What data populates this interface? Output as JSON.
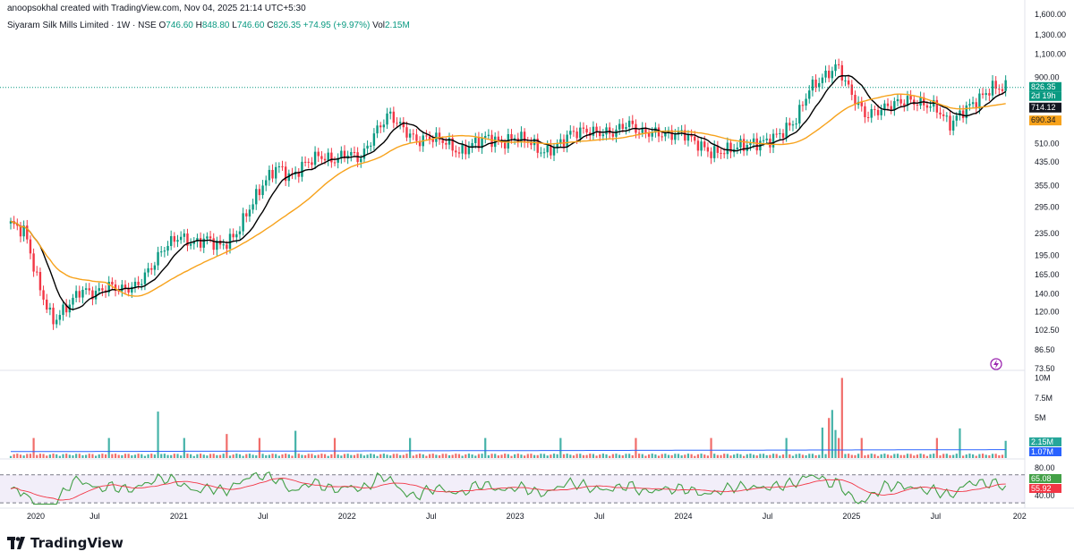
{
  "header": {
    "text": "anoopsokhal created with TradingView.com, Nov 04, 2025 21:14 UTC+5:30"
  },
  "legend": {
    "symbol": "Siyaram Silk Mills Limited · 1W · NSE",
    "o_label": "O",
    "o_value": "746.60",
    "h_label": "H",
    "h_value": "848.80",
    "l_label": "L",
    "l_value": "746.60",
    "c_label": "C",
    "c_value": "826.35",
    "change": "+74.95 (+9.97%)",
    "vol_label": "Vol",
    "vol_value": "2.15M"
  },
  "chart_data": {
    "type": "candlestick",
    "price_scale": "log",
    "price_axis_ticks": [
      "1,300.00",
      "1,100.00",
      "900.00",
      "510.00",
      "435.00",
      "355.00",
      "295.00",
      "235.00",
      "195.00",
      "165.00",
      "140.00",
      "120.00",
      "102.50",
      "86.50",
      "73.50"
    ],
    "price_axis_top_label": "1,600.00",
    "x_axis_labels": [
      "2020",
      "Jul",
      "2021",
      "Jul",
      "2022",
      "Jul",
      "2023",
      "Jul",
      "2024",
      "Jul",
      "2025",
      "Jul",
      "202"
    ],
    "volume_axis_ticks": [
      "10M",
      "7.5M",
      "5M"
    ],
    "rsi_axis_ticks": [
      "80.00",
      "40.00"
    ],
    "price_series": [
      {
        "date": "2020-01",
        "close": 255
      },
      {
        "date": "2020-02",
        "close": 240
      },
      {
        "date": "2020-03",
        "close": 150
      },
      {
        "date": "2020-04",
        "close": 110
      },
      {
        "date": "2020-05",
        "close": 125
      },
      {
        "date": "2020-06",
        "close": 145
      },
      {
        "date": "2020-07",
        "close": 140
      },
      {
        "date": "2020-08",
        "close": 150
      },
      {
        "date": "2020-09",
        "close": 145
      },
      {
        "date": "2020-10",
        "close": 150
      },
      {
        "date": "2020-11",
        "close": 175
      },
      {
        "date": "2020-12",
        "close": 210
      },
      {
        "date": "2021-01",
        "close": 230
      },
      {
        "date": "2021-02",
        "close": 215
      },
      {
        "date": "2021-03",
        "close": 225
      },
      {
        "date": "2021-04",
        "close": 210
      },
      {
        "date": "2021-05",
        "close": 230
      },
      {
        "date": "2021-06",
        "close": 290
      },
      {
        "date": "2021-07",
        "close": 360
      },
      {
        "date": "2021-08",
        "close": 420
      },
      {
        "date": "2021-09",
        "close": 380
      },
      {
        "date": "2021-10",
        "close": 430
      },
      {
        "date": "2021-11",
        "close": 460
      },
      {
        "date": "2021-12",
        "close": 440
      },
      {
        "date": "2022-01",
        "close": 470
      },
      {
        "date": "2022-02",
        "close": 450
      },
      {
        "date": "2022-03",
        "close": 560
      },
      {
        "date": "2022-04",
        "close": 660
      },
      {
        "date": "2022-05",
        "close": 580
      },
      {
        "date": "2022-06",
        "close": 520
      },
      {
        "date": "2022-07",
        "close": 540
      },
      {
        "date": "2022-08",
        "close": 520
      },
      {
        "date": "2022-09",
        "close": 470
      },
      {
        "date": "2022-10",
        "close": 510
      },
      {
        "date": "2022-11",
        "close": 540
      },
      {
        "date": "2022-12",
        "close": 510
      },
      {
        "date": "2023-01",
        "close": 540
      },
      {
        "date": "2023-02",
        "close": 520
      },
      {
        "date": "2023-03",
        "close": 470
      },
      {
        "date": "2023-04",
        "close": 500
      },
      {
        "date": "2023-05",
        "close": 560
      },
      {
        "date": "2023-06",
        "close": 570
      },
      {
        "date": "2023-07",
        "close": 560
      },
      {
        "date": "2023-08",
        "close": 560
      },
      {
        "date": "2023-09",
        "close": 610
      },
      {
        "date": "2023-10",
        "close": 560
      },
      {
        "date": "2023-11",
        "close": 560
      },
      {
        "date": "2023-12",
        "close": 550
      },
      {
        "date": "2024-01",
        "close": 560
      },
      {
        "date": "2024-02",
        "close": 510
      },
      {
        "date": "2024-03",
        "close": 470
      },
      {
        "date": "2024-04",
        "close": 480
      },
      {
        "date": "2024-05",
        "close": 500
      },
      {
        "date": "2024-06",
        "close": 510
      },
      {
        "date": "2024-07",
        "close": 520
      },
      {
        "date": "2024-08",
        "close": 560
      },
      {
        "date": "2024-09",
        "close": 620
      },
      {
        "date": "2024-10",
        "close": 820
      },
      {
        "date": "2024-11",
        "close": 900
      },
      {
        "date": "2024-12",
        "close": 1000
      },
      {
        "date": "2025-01",
        "close": 780
      },
      {
        "date": "2025-02",
        "close": 650
      },
      {
        "date": "2025-03",
        "close": 680
      },
      {
        "date": "2025-04",
        "close": 720
      },
      {
        "date": "2025-05",
        "close": 740
      },
      {
        "date": "2025-06",
        "close": 720
      },
      {
        "date": "2025-07",
        "close": 700
      },
      {
        "date": "2025-08",
        "close": 600
      },
      {
        "date": "2025-09",
        "close": 680
      },
      {
        "date": "2025-10",
        "close": 740
      },
      {
        "date": "2025-11",
        "close": 826
      }
    ],
    "ma_fast_last": "714.12",
    "ma_slow_last": "690.34",
    "last_price": "826.35",
    "countdown": "2d 19h",
    "volume_last": "2.15M",
    "volume_ma_last": "1.07M",
    "rsi_last": "65.08",
    "rsi_ma_last": "55.92",
    "colors": {
      "up": "#089981",
      "down": "#f23645",
      "ma_fast": "#000000",
      "ma_slow": "#f7a21b",
      "rsi": "#43a047",
      "rsi_ma": "#f23645",
      "volume_ma": "#2962ff",
      "vol_ma_badge": "#2962ff"
    }
  },
  "footer": {
    "brand": "TradingView"
  }
}
